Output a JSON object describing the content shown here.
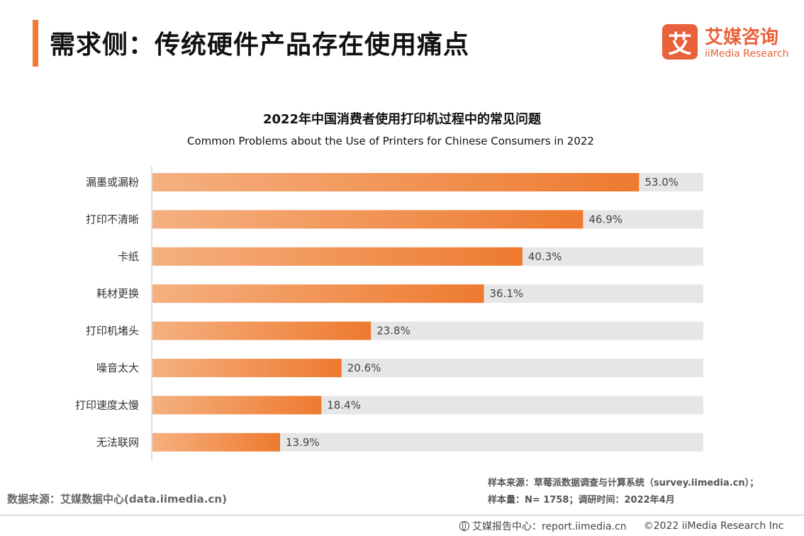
{
  "header": {
    "title": "需求侧：传统硬件产品存在使用痛点",
    "logo_mark": "艾",
    "logo_cn": "艾媒咨询",
    "logo_en": "iiMedia Research"
  },
  "chart_data": {
    "type": "bar",
    "orientation": "horizontal",
    "title": "2022年中国消费者使用打印机过程中的常见问题",
    "subtitle": "Common Problems about the Use of Printers for Chinese Consumers in 2022",
    "categories": [
      "漏墨或漏粉",
      "打印不清晰",
      "卡纸",
      "耗材更换",
      "打印机堵头",
      "噪音太大",
      "打印速度太慢",
      "无法联网"
    ],
    "values": [
      53.0,
      46.9,
      40.3,
      36.1,
      23.8,
      20.6,
      18.4,
      13.9
    ],
    "value_labels": [
      "53.0%",
      "46.9%",
      "40.3%",
      "36.1%",
      "23.8%",
      "20.6%",
      "18.4%",
      "13.9%"
    ],
    "xlim": [
      0,
      60
    ],
    "unit": "%",
    "colors": {
      "bar_start": "#f5b080",
      "bar_end": "#ee7a2f",
      "track": "#e6e6e6"
    }
  },
  "notes": {
    "sample_source": "样本来源：草莓派数据调查与计算系统（survey.iimedia.cn）；",
    "sample_info": "样本量：N= 1758；调研时间：2022年4月",
    "data_source": "数据来源：艾媒数据中心(data.iimedia.cn)"
  },
  "footer": {
    "report_center": "艾媒报告中心：report.iimedia.cn",
    "copyright": "©2022  iiMedia Research  Inc"
  }
}
